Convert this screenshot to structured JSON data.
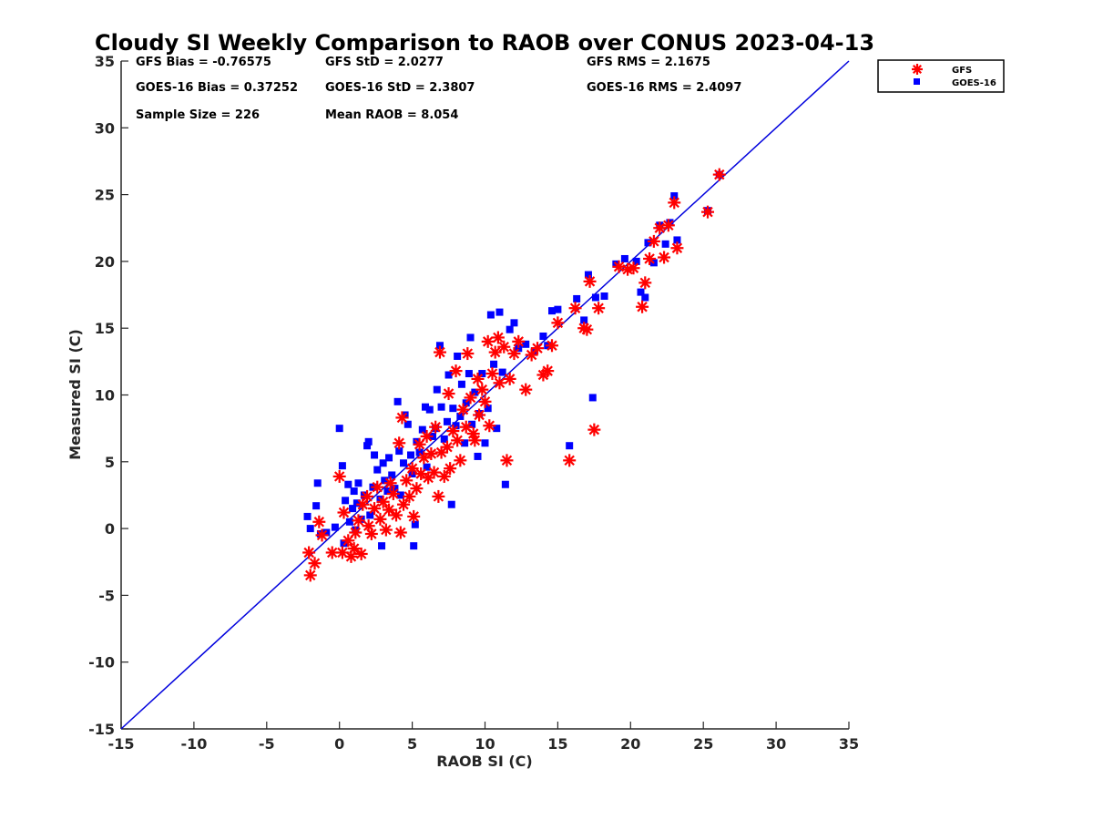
{
  "chart_data": {
    "type": "scatter",
    "title": "Cloudy SI Weekly Comparison to RAOB over CONUS 2023-04-13",
    "xlabel": "RAOB SI (C)",
    "ylabel": "Measured SI (C)",
    "xlim": [
      -15,
      35
    ],
    "ylim": [
      -15,
      35
    ],
    "xticks": [
      "-15",
      "-10",
      "-5",
      "0",
      "5",
      "10",
      "15",
      "20",
      "25",
      "30",
      "35"
    ],
    "yticks": [
      "-15",
      "-10",
      "-5",
      "0",
      "5",
      "10",
      "15",
      "20",
      "25",
      "30",
      "35"
    ],
    "grid": false,
    "legend_position": "outside top-right",
    "reference_line": {
      "from": [
        -15,
        -15
      ],
      "to": [
        35,
        35
      ],
      "color": "#0000dd"
    },
    "stats": [
      "GFS Bias = -0.76575",
      "GFS StD = 2.0277",
      "GFS RMS = 2.1675",
      "GOES-16 Bias = 0.37252",
      "GOES-16 StD = 2.3807",
      "GOES-16 RMS = 2.4097",
      "Sample Size = 226",
      "Mean RAOB = 8.054"
    ],
    "series": [
      {
        "name": "GFS",
        "marker": "asterisk",
        "color": "#ff0000",
        "points": [
          [
            -2.1,
            -1.8
          ],
          [
            -2.0,
            -3.5
          ],
          [
            -1.7,
            -2.6
          ],
          [
            -1.4,
            0.5
          ],
          [
            -1.2,
            -0.5
          ],
          [
            -0.5,
            -1.8
          ],
          [
            0.0,
            3.9
          ],
          [
            0.2,
            -1.8
          ],
          [
            0.3,
            1.2
          ],
          [
            0.6,
            -0.9
          ],
          [
            0.8,
            -2.1
          ],
          [
            1.0,
            -1.5
          ],
          [
            1.1,
            -0.3
          ],
          [
            1.3,
            0.6
          ],
          [
            1.5,
            -1.9
          ],
          [
            1.6,
            1.8
          ],
          [
            1.9,
            2.4
          ],
          [
            2.0,
            0.2
          ],
          [
            2.2,
            -0.4
          ],
          [
            2.4,
            1.5
          ],
          [
            2.6,
            3.1
          ],
          [
            2.8,
            0.7
          ],
          [
            3.0,
            2.0
          ],
          [
            3.2,
            -0.1
          ],
          [
            3.4,
            1.4
          ],
          [
            3.5,
            3.4
          ],
          [
            3.7,
            2.6
          ],
          [
            3.9,
            1.0
          ],
          [
            4.1,
            6.4
          ],
          [
            4.2,
            -0.3
          ],
          [
            4.3,
            8.3
          ],
          [
            4.4,
            1.8
          ],
          [
            4.6,
            3.6
          ],
          [
            4.8,
            2.4
          ],
          [
            5.0,
            4.5
          ],
          [
            5.1,
            0.9
          ],
          [
            5.3,
            3.0
          ],
          [
            5.5,
            6.3
          ],
          [
            5.6,
            4.1
          ],
          [
            5.8,
            5.3
          ],
          [
            6.0,
            6.9
          ],
          [
            6.1,
            3.8
          ],
          [
            6.3,
            5.6
          ],
          [
            6.5,
            4.2
          ],
          [
            6.6,
            7.6
          ],
          [
            6.8,
            2.4
          ],
          [
            6.9,
            13.2
          ],
          [
            7.0,
            5.7
          ],
          [
            7.2,
            3.9
          ],
          [
            7.4,
            6.1
          ],
          [
            7.5,
            10.1
          ],
          [
            7.6,
            4.5
          ],
          [
            7.8,
            7.3
          ],
          [
            8.0,
            11.8
          ],
          [
            8.1,
            6.6
          ],
          [
            8.3,
            5.1
          ],
          [
            8.5,
            8.9
          ],
          [
            8.7,
            7.6
          ],
          [
            8.8,
            13.1
          ],
          [
            9.0,
            9.8
          ],
          [
            9.2,
            7.1
          ],
          [
            9.3,
            6.6
          ],
          [
            9.5,
            11.2
          ],
          [
            9.6,
            8.5
          ],
          [
            9.8,
            10.4
          ],
          [
            10.0,
            9.5
          ],
          [
            10.2,
            14.0
          ],
          [
            10.3,
            7.7
          ],
          [
            10.5,
            11.6
          ],
          [
            10.7,
            13.2
          ],
          [
            10.9,
            14.3
          ],
          [
            11.0,
            10.9
          ],
          [
            11.3,
            13.6
          ],
          [
            11.5,
            5.1
          ],
          [
            11.7,
            11.2
          ],
          [
            12.0,
            13.1
          ],
          [
            12.3,
            14.0
          ],
          [
            12.8,
            10.4
          ],
          [
            13.2,
            13.0
          ],
          [
            13.6,
            13.5
          ],
          [
            14.0,
            11.5
          ],
          [
            14.3,
            11.8
          ],
          [
            14.6,
            13.7
          ],
          [
            15.0,
            15.4
          ],
          [
            15.8,
            5.1
          ],
          [
            16.2,
            16.5
          ],
          [
            16.8,
            15.0
          ],
          [
            17.0,
            14.9
          ],
          [
            17.2,
            18.5
          ],
          [
            17.5,
            7.4
          ],
          [
            17.8,
            16.5
          ],
          [
            19.2,
            19.6
          ],
          [
            19.8,
            19.4
          ],
          [
            20.2,
            19.5
          ],
          [
            20.8,
            16.6
          ],
          [
            21.0,
            18.4
          ],
          [
            21.3,
            20.2
          ],
          [
            21.6,
            21.5
          ],
          [
            22.0,
            22.5
          ],
          [
            22.3,
            20.3
          ],
          [
            22.6,
            22.7
          ],
          [
            23.0,
            24.4
          ],
          [
            23.2,
            21.0
          ],
          [
            25.3,
            23.7
          ],
          [
            26.1,
            26.5
          ]
        ]
      },
      {
        "name": "GOES-16",
        "marker": "square",
        "color": "#0000ff",
        "points": [
          [
            -2.2,
            0.9
          ],
          [
            -2.0,
            0.0
          ],
          [
            -1.6,
            1.7
          ],
          [
            -1.5,
            3.4
          ],
          [
            -1.3,
            -0.4
          ],
          [
            -0.9,
            -0.3
          ],
          [
            -0.3,
            0.1
          ],
          [
            0.0,
            7.5
          ],
          [
            0.2,
            4.7
          ],
          [
            0.3,
            -1.1
          ],
          [
            0.4,
            2.1
          ],
          [
            0.6,
            3.3
          ],
          [
            0.7,
            0.5
          ],
          [
            0.9,
            1.5
          ],
          [
            1.0,
            2.8
          ],
          [
            1.1,
            -0.1
          ],
          [
            1.2,
            1.9
          ],
          [
            1.3,
            3.4
          ],
          [
            1.5,
            0.7
          ],
          [
            1.7,
            2.5
          ],
          [
            1.9,
            6.2
          ],
          [
            2.0,
            6.5
          ],
          [
            2.1,
            1.0
          ],
          [
            2.3,
            3.1
          ],
          [
            2.4,
            5.5
          ],
          [
            2.6,
            4.4
          ],
          [
            2.8,
            2.2
          ],
          [
            2.9,
            -1.3
          ],
          [
            3.0,
            4.9
          ],
          [
            3.1,
            3.6
          ],
          [
            3.3,
            2.8
          ],
          [
            3.4,
            5.3
          ],
          [
            3.6,
            4.0
          ],
          [
            3.8,
            3.0
          ],
          [
            4.0,
            9.5
          ],
          [
            4.1,
            5.8
          ],
          [
            4.2,
            2.5
          ],
          [
            4.4,
            4.9
          ],
          [
            4.5,
            8.5
          ],
          [
            4.7,
            7.8
          ],
          [
            4.9,
            5.5
          ],
          [
            5.0,
            4.1
          ],
          [
            5.1,
            -1.3
          ],
          [
            5.2,
            0.3
          ],
          [
            5.3,
            6.5
          ],
          [
            5.5,
            5.7
          ],
          [
            5.7,
            7.4
          ],
          [
            5.9,
            9.1
          ],
          [
            6.0,
            4.6
          ],
          [
            6.2,
            8.9
          ],
          [
            6.4,
            6.9
          ],
          [
            6.6,
            7.5
          ],
          [
            6.7,
            10.4
          ],
          [
            6.9,
            13.7
          ],
          [
            7.0,
            9.1
          ],
          [
            7.2,
            6.7
          ],
          [
            7.4,
            8.0
          ],
          [
            7.5,
            11.5
          ],
          [
            7.7,
            1.8
          ],
          [
            7.8,
            9.0
          ],
          [
            8.0,
            7.7
          ],
          [
            8.1,
            12.9
          ],
          [
            8.3,
            8.4
          ],
          [
            8.4,
            10.8
          ],
          [
            8.6,
            6.4
          ],
          [
            8.7,
            9.4
          ],
          [
            8.9,
            11.6
          ],
          [
            9.0,
            14.3
          ],
          [
            9.1,
            7.8
          ],
          [
            9.3,
            10.2
          ],
          [
            9.5,
            5.4
          ],
          [
            9.6,
            8.6
          ],
          [
            9.8,
            11.6
          ],
          [
            10.0,
            6.4
          ],
          [
            10.2,
            9.0
          ],
          [
            10.4,
            16.0
          ],
          [
            10.6,
            12.3
          ],
          [
            10.8,
            7.5
          ],
          [
            11.0,
            16.2
          ],
          [
            11.2,
            11.7
          ],
          [
            11.4,
            3.3
          ],
          [
            11.7,
            14.9
          ],
          [
            12.0,
            15.4
          ],
          [
            12.3,
            13.5
          ],
          [
            12.8,
            13.8
          ],
          [
            13.4,
            13.3
          ],
          [
            14.0,
            14.4
          ],
          [
            14.3,
            13.7
          ],
          [
            14.6,
            16.3
          ],
          [
            15.0,
            16.4
          ],
          [
            15.8,
            6.2
          ],
          [
            16.3,
            17.2
          ],
          [
            16.8,
            15.6
          ],
          [
            17.1,
            19.0
          ],
          [
            17.4,
            9.8
          ],
          [
            17.6,
            17.3
          ],
          [
            18.2,
            17.4
          ],
          [
            19.0,
            19.8
          ],
          [
            19.6,
            20.2
          ],
          [
            20.4,
            20.0
          ],
          [
            20.7,
            17.7
          ],
          [
            21.0,
            17.3
          ],
          [
            21.2,
            21.4
          ],
          [
            21.6,
            19.9
          ],
          [
            22.0,
            22.7
          ],
          [
            22.4,
            21.3
          ],
          [
            22.7,
            22.9
          ],
          [
            23.0,
            24.9
          ],
          [
            23.2,
            21.6
          ],
          [
            25.3,
            23.8
          ],
          [
            26.1,
            26.5
          ]
        ]
      }
    ]
  }
}
